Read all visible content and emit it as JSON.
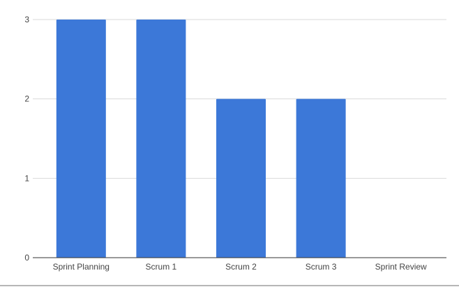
{
  "chart_data": {
    "type": "bar",
    "categories": [
      "Sprint Planning",
      "Scrum 1",
      "Scrum 2",
      "Scrum 3",
      "Sprint Review"
    ],
    "values": [
      3,
      3,
      2,
      2,
      0
    ],
    "title": "",
    "xlabel": "",
    "ylabel": "",
    "ylim": [
      0,
      3
    ],
    "yticks": [
      "0",
      "1",
      "2",
      "3"
    ],
    "grid": true,
    "legend": "none",
    "bar_color": "#3c78d8"
  }
}
